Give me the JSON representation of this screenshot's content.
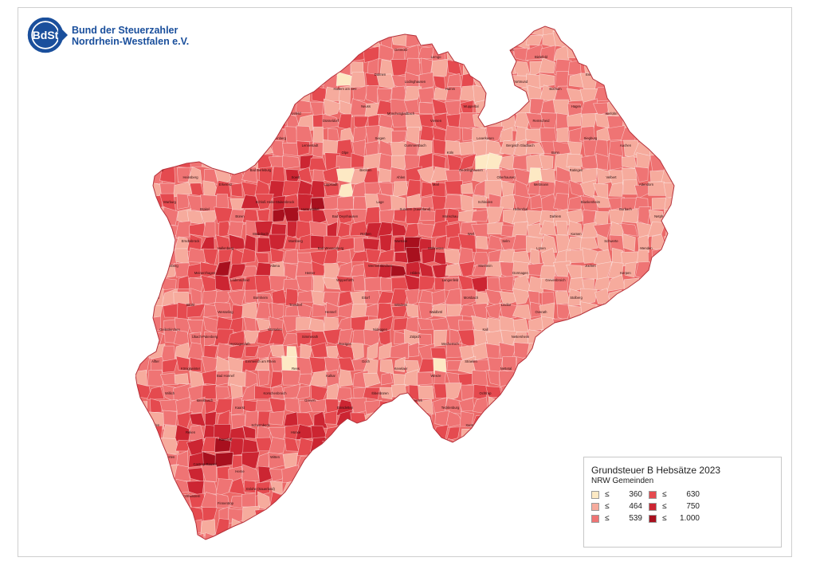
{
  "header": {
    "logo_text": "BdSt",
    "org_line1": "Bund der Steuerzahler",
    "org_line2": "Nordrhein-Westfalen e.V."
  },
  "legend": {
    "title": "Grundsteuer B Hebsätze 2023",
    "subtitle": "NRW Gemeinden",
    "operator": "≤",
    "classes": [
      {
        "value": "360",
        "color": "#fde9c4"
      },
      {
        "value": "464",
        "color": "#f6ab9d"
      },
      {
        "value": "539",
        "color": "#ef7474"
      },
      {
        "value": "630",
        "color": "#e54a4f"
      },
      {
        "value": "750",
        "color": "#cc2532"
      },
      {
        "value": "1.000",
        "color": "#a8101e"
      }
    ]
  },
  "map": {
    "region": "Nordrhein-Westfalen",
    "labels": [
      "Rahden",
      "Petershagen",
      "Minden",
      "Lübbecke",
      "Bünde",
      "Herford",
      "Bad Salzuflen",
      "Detmold",
      "Lemgo",
      "Höxter",
      "Paderborn",
      "Bielefeld",
      "Gütersloh",
      "Warendorf",
      "Münster",
      "Rheine",
      "Borken",
      "Coesfeld",
      "Bocholt",
      "Dorsten",
      "Haltern am See",
      "Dülmen",
      "Lüdinghausen",
      "Hamm",
      "Unna",
      "Dortmund",
      "Bochum",
      "Essen",
      "Gelsenkirchen",
      "Duisburg",
      "Moers",
      "Wesel",
      "Kleve",
      "Geldern",
      "Krefeld",
      "Düsseldorf",
      "Neuss",
      "Mönchengladbach",
      "Viersen",
      "Wuppertal",
      "Solingen",
      "Remscheid",
      "Hagen",
      "Iserlohn",
      "Arnsberg",
      "Meschede",
      "Brilon",
      "Winterberg",
      "Schmallenberg",
      "Lennestadt",
      "Olpe",
      "Siegen",
      "Gummersbach",
      "Köln",
      "Leverkusen",
      "Bergisch Gladbach",
      "Bonn",
      "Siegburg",
      "Aachen",
      "Düren",
      "Euskirchen",
      "Heinsberg",
      "Erkelenz",
      "Bad Berleburg",
      "Soest",
      "Lippstadt",
      "Beckum",
      "Ahlen",
      "Marl",
      "Recklinghausen",
      "Oberhausen",
      "Mettmann",
      "Ratingen",
      "Velbert",
      "Attendorn",
      "Warburg",
      "Brakel",
      "Büren",
      "Schloß Holte-Stukenbrock",
      "Harsewinkel",
      "Bad Oeynhausen",
      "Lage",
      "Sundern (Sauerland)",
      "Monschau",
      "Schleiden",
      "Hellenthal",
      "Dahlem",
      "Blankenheim",
      "Burbach",
      "Netphen",
      "Kreuztal",
      "Erndtebrück",
      "Hallenberg",
      "Medebach",
      "Marsberg",
      "Bad Wünnenberg",
      "Rüthen",
      "Warstein",
      "Möhnesee",
      "Werl",
      "Selm",
      "Lünen",
      "Kamen",
      "Schwerte",
      "Menden",
      "Plettenberg",
      "Meinerzhagen",
      "Lüdenscheid",
      "Altena",
      "Hemer",
      "Wipperfürth",
      "Wermelskirchen",
      "Hilden",
      "Langenfeld",
      "Monheim",
      "Dormagen",
      "Grevenbroich",
      "Jüchen",
      "Kerpen",
      "Frechen",
      "Hürth",
      "Brühl",
      "Wesseling",
      "Bornheim",
      "Troisdorf",
      "Hennef",
      "Eitorf",
      "Windeck",
      "Waldbröl",
      "Morsbach",
      "Lindlar",
      "Overath",
      "Stolberg",
      "Eschweiler",
      "Jülich",
      "Geilenkirchen",
      "Übach-Palenberg",
      "Herzogenrath",
      "Würselen",
      "Simmerath",
      "Roetgen",
      "Nideggen",
      "Zülpich",
      "Mechernich",
      "Kall",
      "Nettersheim",
      "Bad Münstereifel",
      "Rheinbach",
      "Meckenheim",
      "Wachtberg",
      "Alfter",
      "Königswinter",
      "Bad Honnef",
      "Emmerich am Rhein",
      "Rees",
      "Kalkar",
      "Goch",
      "Kevelaer",
      "Weeze",
      "Straelen",
      "Nettetal",
      "Brüggen",
      "Schwalmtal",
      "Kempen",
      "Tönisvorst",
      "Willich",
      "Meerbusch",
      "Kaarst",
      "Korschenbroich",
      "Greven",
      "Emsdetten",
      "Ibbenbüren",
      "Lengerich",
      "Tecklenburg",
      "Ochtrup",
      "Gronau",
      "Ahaus",
      "Stadtlohn",
      "Vreden",
      "Gescher",
      "Velen",
      "Reken",
      "Raesfeld",
      "Schermbeck",
      "Hünxe",
      "Voerde",
      "Dinslaken",
      "Kamp-Lintfort",
      "Rheinberg",
      "Xanten",
      "Sonsbeck",
      "Alpen",
      "Neukirchen-Vluyn",
      "Bottrop",
      "Gladbeck",
      "Herten",
      "Castrop-Rauxel",
      "Herne",
      "Witten",
      "Hattingen",
      "Sprockhövel",
      "Schwelm",
      "Ennepetal",
      "Gevelsberg",
      "Breckerfeld",
      "Wetter",
      "Herdecke",
      "Hilchenbach",
      "Bad Laasphe",
      "Wenden",
      "Drolshagen",
      "Kirchhundem",
      "Finnentrop",
      "Eslohe (Sauerland)",
      "Bestwig",
      "Olsberg",
      "Balve",
      "Neuenrade",
      "Herscheid",
      "Kierspe",
      "Halver",
      "Schalksmühle",
      "Nachrodt-Wiblingwerde"
    ]
  }
}
